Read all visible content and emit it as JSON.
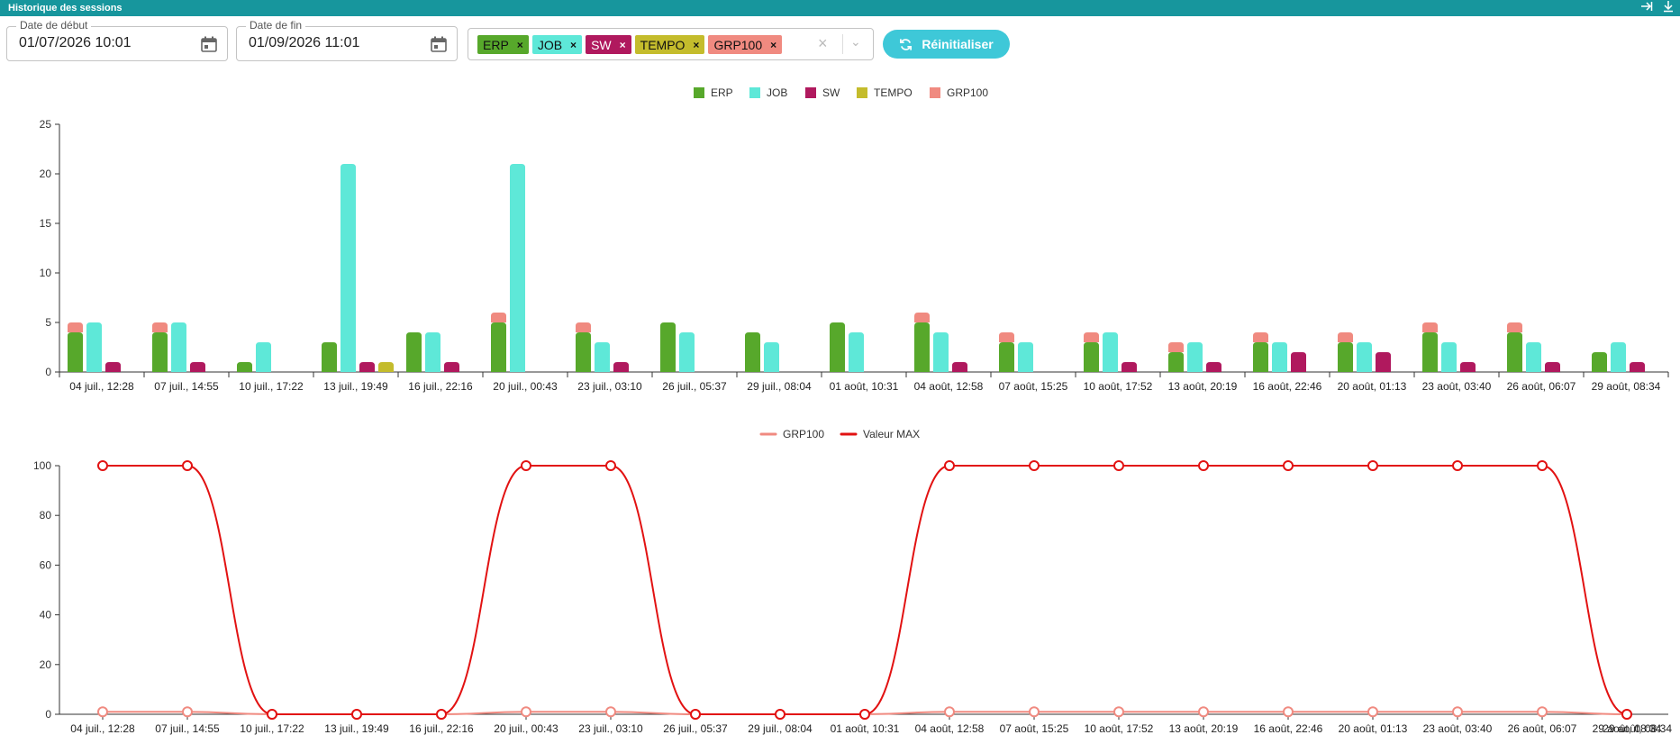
{
  "window": {
    "title": "Historique des sessions"
  },
  "icons": {
    "title_actions": [
      "collapse-right-icon",
      "download-icon"
    ],
    "calendar": "calendar-icon",
    "refresh": "refresh-icon"
  },
  "filters": {
    "start": {
      "label": "Date de début",
      "value": "01/07/2026 10:01"
    },
    "end": {
      "label": "Date de fin",
      "value": "01/09/2026 11:01"
    },
    "chips": [
      {
        "label": "ERP",
        "color": "#57a82b"
      },
      {
        "label": "JOB",
        "color": "#5ee8d8"
      },
      {
        "label": "SW",
        "color": "#b0195e"
      },
      {
        "label": "TEMPO",
        "color": "#c4bc2c"
      },
      {
        "label": "GRP100",
        "color": "#f08a80"
      }
    ],
    "chip_remove": "×",
    "clear_symbol": "×",
    "dropdown_symbol": "⌄",
    "reset_label": "Réinitialiser"
  },
  "chart_data": [
    {
      "type": "bar",
      "categories": [
        "04 juil., 12:28",
        "07 juil., 14:55",
        "10 juil., 17:22",
        "13 juil., 19:49",
        "16 juil., 22:16",
        "20 juil., 00:43",
        "23 juil., 03:10",
        "26 juil., 05:37",
        "29 juil., 08:04",
        "01 août, 10:31",
        "04 août, 12:58",
        "07 août, 15:25",
        "10 août, 17:52",
        "13 août, 20:19",
        "16 août, 22:46",
        "20 août, 01:13",
        "23 août, 03:40",
        "26 août, 06:07",
        "29 août, 08:34"
      ],
      "series": [
        {
          "name": "ERP",
          "color": "#57a82b",
          "values": [
            4,
            4,
            1,
            3,
            4,
            5,
            4,
            5,
            4,
            5,
            5,
            3,
            3,
            2,
            3,
            3,
            4,
            4,
            2
          ]
        },
        {
          "name": "JOB",
          "color": "#5ee8d8",
          "values": [
            5,
            5,
            3,
            21,
            4,
            21,
            3,
            4,
            3,
            4,
            4,
            3,
            4,
            3,
            3,
            3,
            3,
            3,
            3
          ]
        },
        {
          "name": "SW",
          "color": "#b0195e",
          "values": [
            1,
            1,
            0,
            1,
            1,
            0,
            1,
            0,
            0,
            0,
            1,
            0,
            1,
            1,
            2,
            2,
            1,
            1,
            1
          ]
        },
        {
          "name": "TEMPO",
          "color": "#c4bc2c",
          "values": [
            0,
            0,
            0,
            1,
            0,
            0,
            0,
            0,
            0,
            0,
            0,
            0,
            0,
            0,
            0,
            0,
            0,
            0,
            0
          ]
        },
        {
          "name": "GRP100",
          "color": "#f08a80",
          "stacked_on": "ERP",
          "values": [
            1,
            1,
            0,
            0,
            0,
            1,
            1,
            0,
            0,
            0,
            1,
            1,
            1,
            1,
            1,
            1,
            1,
            1,
            0
          ]
        }
      ],
      "ylim": [
        0,
        25
      ],
      "yticks": [
        0,
        5,
        10,
        15,
        20,
        25
      ],
      "legend": "top-center"
    },
    {
      "type": "line",
      "categories": [
        "04 juil., 12:28",
        "07 juil., 14:55",
        "10 juil., 17:22",
        "13 juil., 19:49",
        "16 juil., 22:16",
        "20 juil., 00:43",
        "23 juil., 03:10",
        "26 juil., 05:37",
        "29 juil., 08:04",
        "01 août, 10:31",
        "04 août, 12:58",
        "07 août, 15:25",
        "10 août, 17:52",
        "13 août, 20:19",
        "16 août, 22:46",
        "20 août, 01:13",
        "23 août, 03:40",
        "26 août, 06:07",
        "29 août, 08:34"
      ],
      "x_extra_label": "29 août, 08:34",
      "series": [
        {
          "name": "GRP100",
          "color": "#f08a80",
          "values": [
            1,
            1,
            0,
            0,
            0,
            1,
            1,
            0,
            0,
            0,
            1,
            1,
            1,
            1,
            1,
            1,
            1,
            1,
            0
          ]
        },
        {
          "name": "Valeur MAX",
          "color": "#e21212",
          "values": [
            100,
            100,
            0,
            0,
            0,
            100,
            100,
            0,
            0,
            0,
            100,
            100,
            100,
            100,
            100,
            100,
            100,
            100,
            0
          ]
        }
      ],
      "ylim": [
        0,
        100
      ],
      "yticks": [
        0,
        20,
        40,
        60,
        80,
        100
      ],
      "legend": "top-center"
    }
  ]
}
